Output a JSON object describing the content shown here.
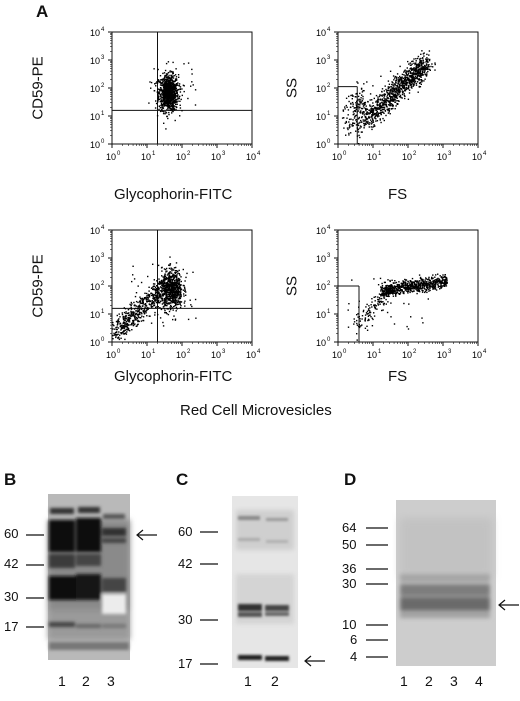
{
  "panel_a": {
    "letter": "A",
    "plots": [
      {
        "y_label": "CD59-PE",
        "x_label": "Glycophorin-FITC"
      },
      {
        "y_label": "SS",
        "x_label": "FS"
      },
      {
        "y_label": "CD59-PE",
        "x_label": "Glycophorin-FITC"
      },
      {
        "y_label": "SS",
        "x_label": "FS"
      }
    ],
    "x_ticks": [
      "10",
      "10",
      "10",
      "10",
      "10"
    ],
    "x_tick_exps": [
      "0",
      "1",
      "2",
      "3",
      "4"
    ],
    "y_ticks": [
      "10",
      "10",
      "10",
      "10",
      "10"
    ],
    "y_tick_exps": [
      "0",
      "1",
      "2",
      "3",
      "4"
    ],
    "caption": "Red Cell Microvesicles"
  },
  "panel_b": {
    "letter": "B",
    "markers": [
      "60",
      "42",
      "30",
      "17"
    ],
    "lanes": [
      "1",
      "2",
      "3"
    ]
  },
  "panel_c": {
    "letter": "C",
    "markers": [
      "60",
      "42",
      "30",
      "17"
    ],
    "lanes": [
      "1",
      "2"
    ]
  },
  "panel_d": {
    "letter": "D",
    "markers": [
      "64",
      "50",
      "36",
      "30",
      "10",
      "6",
      "4"
    ],
    "lanes": [
      "1",
      "2",
      "3",
      "4"
    ]
  }
}
